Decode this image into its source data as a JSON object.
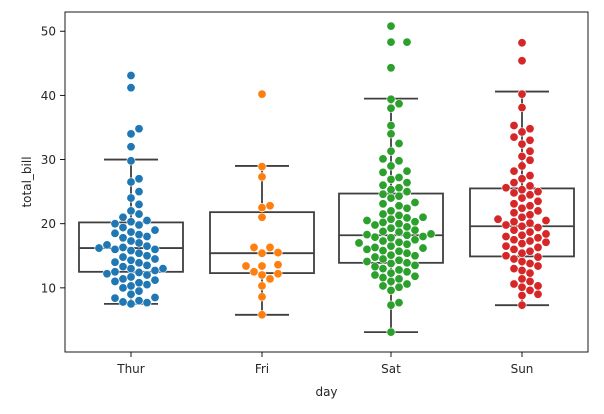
{
  "chart_data": {
    "type": "box+swarm",
    "title": "",
    "xlabel": "day",
    "ylabel": "total_bill",
    "categories": [
      "Thur",
      "Fri",
      "Sat",
      "Sun"
    ],
    "ylim": [
      0,
      53
    ],
    "yticks": [
      10,
      20,
      30,
      40,
      50
    ],
    "grid": false,
    "legend": "none",
    "box_style": {
      "facecolor": "none",
      "edgecolor": "#3f3f3f"
    },
    "series": [
      {
        "name": "Thur",
        "color": "#1f77b4",
        "box": {
          "whisker_low": 7.5,
          "q1": 12.5,
          "median": 16.2,
          "q3": 20.2,
          "whisker_high": 30.0
        },
        "values": [
          7.5,
          7.7,
          7.8,
          8.0,
          8.4,
          8.5,
          9.0,
          9.5,
          10.0,
          10.3,
          10.5,
          10.8,
          11.0,
          11.2,
          11.4,
          11.7,
          12.0,
          12.2,
          12.4,
          12.5,
          12.7,
          13.0,
          13.0,
          13.3,
          13.5,
          13.9,
          14.0,
          14.3,
          14.5,
          14.8,
          15.0,
          15.4,
          15.8,
          16.0,
          16.0,
          16.2,
          16.3,
          16.5,
          16.7,
          17.0,
          17.3,
          17.8,
          18.0,
          18.3,
          18.5,
          18.7,
          19.0,
          19.4,
          19.8,
          20.0,
          20.3,
          20.5,
          21.0,
          21.5,
          22.0,
          23.0,
          24.0,
          25.0,
          26.5,
          27.0,
          29.8,
          32.0,
          34.0,
          34.8,
          41.2,
          43.1
        ]
      },
      {
        "name": "Fri",
        "color": "#ff7f0e",
        "box": {
          "whisker_low": 5.8,
          "q1": 12.3,
          "median": 15.4,
          "q3": 21.8,
          "whisker_high": 29.0
        },
        "values": [
          5.8,
          8.6,
          10.3,
          11.4,
          12.0,
          12.2,
          12.5,
          13.4,
          13.4,
          13.6,
          15.4,
          15.5,
          16.3,
          16.3,
          21.0,
          22.5,
          22.8,
          27.3,
          28.9,
          40.2
        ]
      },
      {
        "name": "Sat",
        "color": "#2ca02c",
        "box": {
          "whisker_low": 3.1,
          "q1": 13.9,
          "median": 18.2,
          "q3": 24.7,
          "whisker_high": 39.5
        },
        "values": [
          3.1,
          7.3,
          7.7,
          9.6,
          10.1,
          10.3,
          10.6,
          11.0,
          11.4,
          11.6,
          11.8,
          12.0,
          12.3,
          12.5,
          12.8,
          13.0,
          13.3,
          13.5,
          13.8,
          13.9,
          14.1,
          14.3,
          14.5,
          14.8,
          15.0,
          15.1,
          15.4,
          15.7,
          15.8,
          16.0,
          16.2,
          16.3,
          16.5,
          16.8,
          17.0,
          17.1,
          17.3,
          17.5,
          17.8,
          17.9,
          18.0,
          18.2,
          18.3,
          18.4,
          18.7,
          18.8,
          19.0,
          19.3,
          19.5,
          19.8,
          20.0,
          20.2,
          20.3,
          20.5,
          20.7,
          20.9,
          21.0,
          21.3,
          21.5,
          22.0,
          22.4,
          22.8,
          23.1,
          23.3,
          24.0,
          24.3,
          24.6,
          25.0,
          25.3,
          25.6,
          26.0,
          26.4,
          26.9,
          27.2,
          28.0,
          28.2,
          29.0,
          29.8,
          30.1,
          31.3,
          32.5,
          34.0,
          35.3,
          38.0,
          38.7,
          39.4,
          44.3,
          48.3,
          48.3,
          50.8
        ]
      },
      {
        "name": "Sun",
        "color": "#d62728",
        "box": {
          "whisker_low": 7.3,
          "q1": 14.9,
          "median": 19.6,
          "q3": 25.5,
          "whisker_high": 40.6
        },
        "values": [
          7.3,
          8.8,
          9.0,
          9.6,
          10.1,
          10.3,
          10.6,
          11.0,
          11.4,
          12.3,
          12.7,
          13.0,
          13.4,
          13.8,
          14.1,
          14.5,
          14.8,
          15.0,
          15.4,
          15.7,
          16.0,
          16.3,
          16.5,
          16.9,
          17.1,
          17.3,
          17.5,
          17.8,
          18.0,
          18.2,
          18.4,
          18.7,
          19.0,
          19.4,
          19.6,
          19.8,
          20.1,
          20.3,
          20.5,
          20.7,
          21.0,
          21.4,
          21.7,
          22.0,
          22.4,
          22.8,
          23.1,
          23.5,
          24.0,
          24.5,
          24.8,
          25.0,
          25.3,
          25.6,
          25.9,
          26.4,
          27.0,
          27.5,
          28.2,
          29.0,
          29.9,
          30.5,
          31.3,
          32.4,
          33.0,
          33.5,
          34.3,
          34.8,
          35.3,
          38.1,
          40.2,
          45.4,
          48.2
        ]
      }
    ]
  }
}
